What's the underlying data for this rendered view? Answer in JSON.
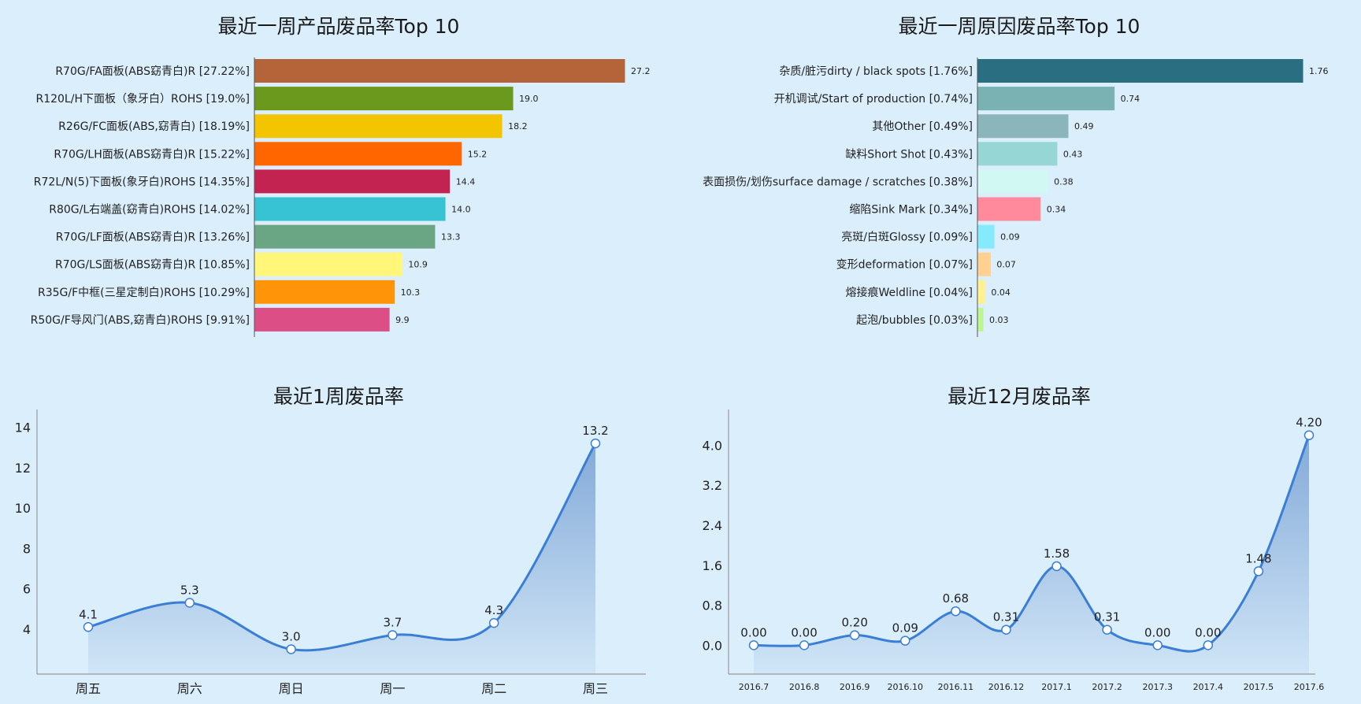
{
  "charts": [
    {
      "type": "bar",
      "orientation": "horizontal",
      "title": "最近一周产品废品率Top 10",
      "categories": [
        "R70G/FA面板(ABS窈青白)R [27.22%]",
        "R120L/H下面板（象牙白）ROHS [19.0%]",
        "R26G/FC面板(ABS,窈青白) [18.19%]",
        "R70G/LH面板(ABS窈青白)R [15.22%]",
        "R72L/N(5)下面板(象牙白)ROHS [14.35%]",
        "R80G/L右端盖(窈青白)ROHS [14.02%]",
        "R70G/LF面板(ABS窈青白)R [13.26%]",
        "R70G/LS面板(ABS窈青白)R [10.85%]",
        "R35G/F中框(三星定制白)ROHS [10.29%]",
        "R50G/F导风门(ABS,窈青白)ROHS [9.91%]"
      ],
      "values": [
        27.22,
        19.0,
        18.19,
        15.22,
        14.35,
        14.02,
        13.26,
        10.85,
        10.29,
        9.91
      ],
      "value_labels": [
        "27.2",
        "19.0",
        "18.2",
        "15.2",
        "14.4",
        "14.0",
        "13.3",
        "10.9",
        "10.3",
        "9.9"
      ],
      "colors": [
        "#b5643a",
        "#6b991e",
        "#f3c500",
        "#ff6600",
        "#c22350",
        "#37c3d3",
        "#6aa683",
        "#fff67a",
        "#ff9408",
        "#dc4f86"
      ],
      "xlim": [
        0,
        27.22
      ]
    },
    {
      "type": "bar",
      "orientation": "horizontal",
      "title": "最近一周原因废品率Top 10",
      "categories": [
        "杂质/脏污dirty / black spots [1.76%]",
        "开机调试/Start of production [0.74%]",
        "其他Other [0.49%]",
        "缺料Short Shot [0.43%]",
        "表面损伤/划伤surface damage / scratches [0.38%]",
        "缩陷Sink Mark [0.34%]",
        "亮斑/白斑Glossy [0.09%]",
        "变形deformation  [0.07%]",
        "熔接痕Weldline [0.04%]",
        "起泡/bubbles [0.03%]"
      ],
      "values": [
        1.76,
        0.74,
        0.49,
        0.43,
        0.38,
        0.34,
        0.09,
        0.07,
        0.04,
        0.03
      ],
      "value_labels": [
        "1.76",
        "0.74",
        "0.49",
        "0.43",
        "0.38",
        "0.34",
        "0.09",
        "0.07",
        "0.04",
        "0.03"
      ],
      "colors": [
        "#2a6e82",
        "#7ab1b3",
        "#8ab5bb",
        "#96d6d5",
        "#d1f8f2",
        "#ff8a9c",
        "#85eafc",
        "#ffd191",
        "#fff28e",
        "#bdf58f"
      ],
      "xlim": [
        0,
        1.76
      ]
    },
    {
      "type": "area",
      "title": "最近1周废品率",
      "categories": [
        "周五",
        "周六",
        "周日",
        "周一",
        "周二",
        "周三"
      ],
      "values": [
        4.1,
        5.3,
        3.0,
        3.7,
        4.3,
        13.2
      ],
      "value_labels": [
        "4.1",
        "5.3",
        "3.0",
        "3.7",
        "4.3",
        "13.2"
      ],
      "yticks": [
        "4",
        "6",
        "8",
        "10",
        "12",
        "14"
      ],
      "ytick_values": [
        4,
        6,
        8,
        10,
        12,
        14
      ],
      "ylim": [
        2.9,
        14.1
      ],
      "line_color": "#3a7fd5",
      "fill_color": "#7fa6d6"
    },
    {
      "type": "area",
      "title": "最近12月废品率",
      "categories": [
        "2016.7",
        "2016.8",
        "2016.9",
        "2016.10",
        "2016.11",
        "2016.12",
        "2017.1",
        "2017.2",
        "2017.3",
        "2017.4",
        "2017.5",
        "2017.6"
      ],
      "values": [
        0.0,
        0.0,
        0.2,
        0.09,
        0.68,
        0.31,
        1.58,
        0.31,
        0.0,
        0.0,
        1.48,
        4.2
      ],
      "value_labels": [
        "0.00",
        "0.00",
        "0.20",
        "0.09",
        "0.68",
        "0.31",
        "1.58",
        "0.31",
        "0.00",
        "0.00",
        "1.48",
        "4.20"
      ],
      "yticks": [
        "0.0",
        "0.8",
        "1.6",
        "2.4",
        "3.2",
        "4.0"
      ],
      "ytick_values": [
        0,
        0.8,
        1.6,
        2.4,
        3.2,
        4.0
      ],
      "ylim": [
        -0.12,
        4.4
      ],
      "line_color": "#3a7fd5",
      "fill_color": "#7fa6d6"
    }
  ]
}
